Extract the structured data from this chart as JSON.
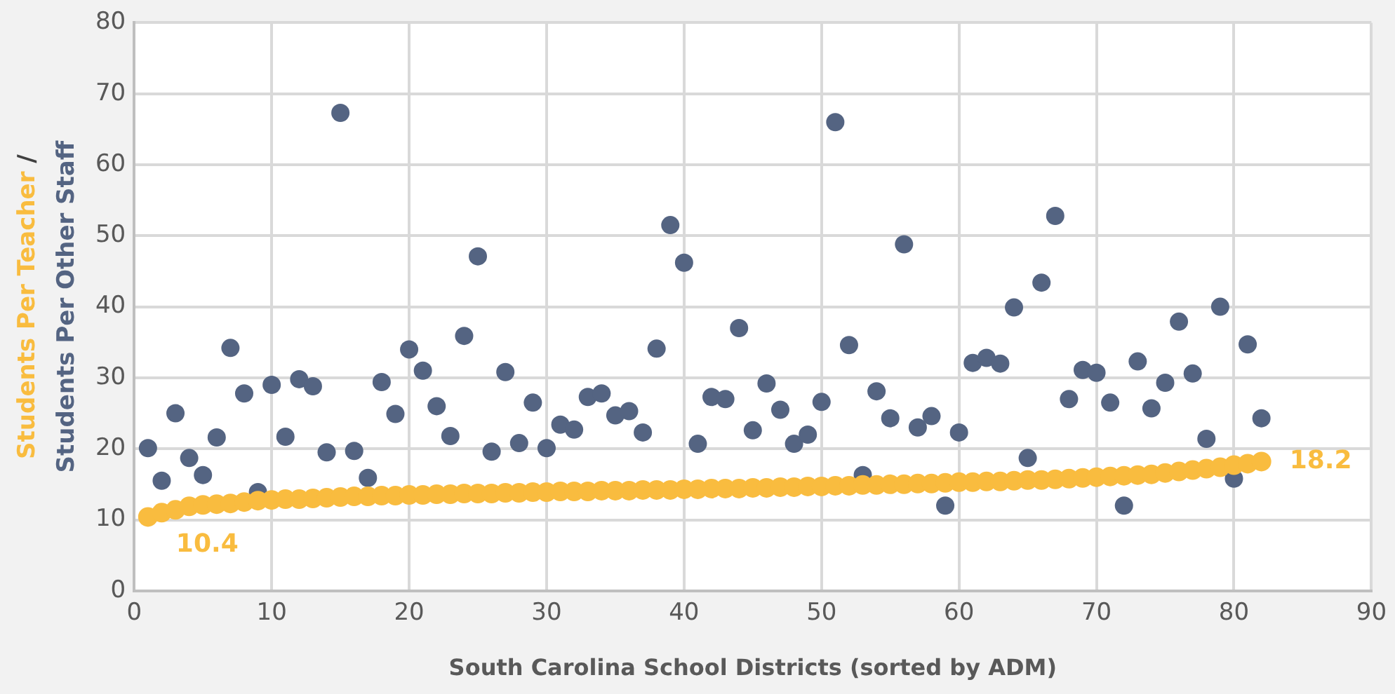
{
  "chart_data": {
    "type": "scatter",
    "xlabel": "South Carolina School Districts (sorted by ADM)",
    "ylabel": "/",
    "x": [
      1,
      2,
      3,
      4,
      5,
      6,
      7,
      8,
      9,
      10,
      11,
      12,
      13,
      14,
      15,
      16,
      17,
      18,
      19,
      20,
      21,
      22,
      23,
      24,
      25,
      26,
      27,
      28,
      29,
      30,
      31,
      32,
      33,
      34,
      35,
      36,
      37,
      38,
      39,
      40,
      41,
      42,
      43,
      44,
      45,
      46,
      47,
      48,
      49,
      50,
      51,
      52,
      53,
      54,
      55,
      56,
      57,
      58,
      59,
      60,
      61,
      62,
      63,
      64,
      65,
      66,
      67,
      68,
      69,
      70,
      71,
      72,
      73,
      74,
      75,
      76,
      77,
      78,
      79,
      80,
      81,
      82
    ],
    "series": [
      {
        "name": "Students Per Other Staff",
        "color": "#546482",
        "values": [
          20.1,
          15.5,
          25,
          18.7,
          16.3,
          21.6,
          34.2,
          27.8,
          13.9,
          29,
          21.7,
          29.8,
          28.8,
          19.5,
          67.3,
          19.7,
          15.9,
          29.4,
          24.9,
          34,
          31,
          26,
          21.8,
          35.9,
          47.1,
          19.6,
          30.8,
          20.8,
          26.5,
          20.1,
          23.4,
          22.7,
          27.3,
          27.8,
          24.7,
          25.3,
          22.3,
          34.1,
          51.5,
          46.2,
          20.7,
          27.3,
          27,
          37,
          22.6,
          29.2,
          25.5,
          20.7,
          22,
          26.6,
          66,
          34.6,
          16.3,
          28.1,
          24.3,
          48.8,
          23,
          24.6,
          12,
          22.3,
          32.1,
          32.8,
          32,
          39.9,
          18.7,
          43.4,
          52.8,
          27,
          31.1,
          30.7,
          26.5,
          12,
          32.3,
          25.7,
          29.3,
          37.9,
          30.6,
          21.4,
          40,
          15.8,
          34.7,
          24.3
        ]
      },
      {
        "name": "Students Per Teacher",
        "color": "#f9bc3f",
        "values": [
          10.4,
          11.0,
          11.4,
          11.9,
          12.1,
          12.2,
          12.3,
          12.5,
          12.7,
          12.8,
          12.9,
          12.9,
          13.0,
          13.1,
          13.2,
          13.3,
          13.3,
          13.4,
          13.4,
          13.5,
          13.5,
          13.6,
          13.6,
          13.7,
          13.7,
          13.7,
          13.8,
          13.8,
          13.9,
          13.9,
          14.0,
          14.0,
          14.0,
          14.1,
          14.1,
          14.1,
          14.2,
          14.2,
          14.2,
          14.3,
          14.3,
          14.4,
          14.4,
          14.4,
          14.5,
          14.5,
          14.6,
          14.6,
          14.7,
          14.7,
          14.8,
          14.8,
          14.9,
          14.9,
          15.0,
          15.0,
          15.1,
          15.1,
          15.2,
          15.3,
          15.3,
          15.4,
          15.4,
          15.5,
          15.6,
          15.6,
          15.7,
          15.8,
          15.9,
          16.0,
          16.1,
          16.2,
          16.3,
          16.4,
          16.6,
          16.8,
          17.0,
          17.2,
          17.4,
          17.7,
          17.9,
          18.2
        ]
      }
    ],
    "annotations": [
      {
        "text": "10.4",
        "x": 1,
        "y": 10.4
      },
      {
        "text": "18.2",
        "x": 82,
        "y": 18.2
      }
    ],
    "xlim": [
      0,
      90
    ],
    "xticks": [
      0,
      10,
      20,
      30,
      40,
      50,
      60,
      70,
      80,
      90
    ],
    "ylim": [
      0,
      80
    ],
    "yticks": [
      0,
      10,
      20,
      30,
      40,
      50,
      60,
      70,
      80
    ],
    "grid": true,
    "legend": false,
    "marker": "circle"
  }
}
